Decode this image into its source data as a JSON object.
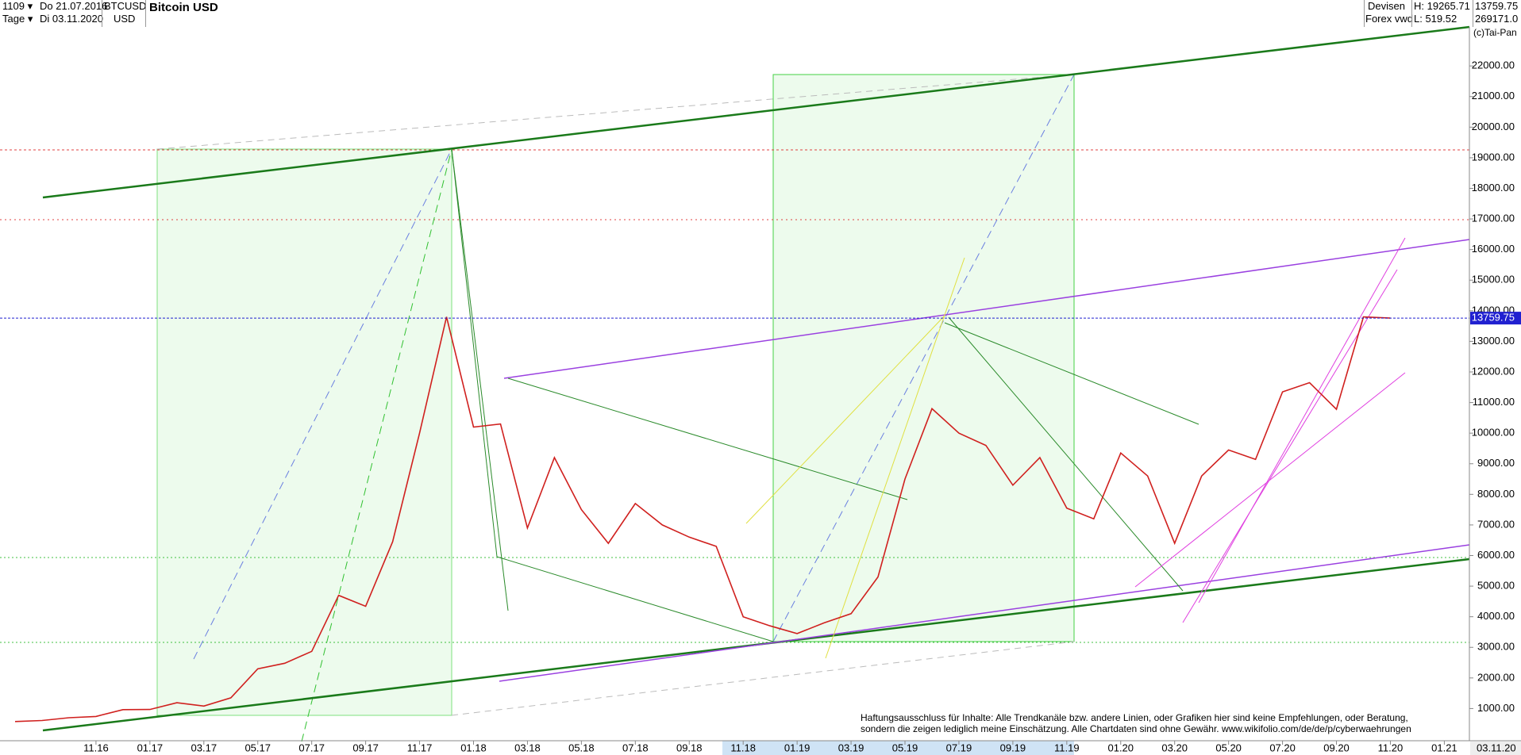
{
  "header": {
    "period": "1109",
    "from": "Do 21.07.2016",
    "unit": "Tage",
    "to": "Di 03.11.2020",
    "symbol": "BTCUSD",
    "currency": "USD",
    "market": "Devisen",
    "source": "Forex vwd",
    "high": "H: 19265.71",
    "low": "L: 519.52",
    "volume": "269171.0",
    "copyright": "(c)Tai-Pan"
  },
  "chart_data": {
    "type": "line",
    "title": "Bitcoin USD",
    "categories": [
      null,
      null,
      null,
      "11.16",
      null,
      "01.17",
      null,
      "03.17",
      null,
      "05.17",
      null,
      "07.17",
      null,
      "09.17",
      null,
      "11.17",
      null,
      "01.18",
      null,
      "03.18",
      null,
      "05.18",
      null,
      "07.18",
      null,
      "09.18",
      null,
      "11.18",
      null,
      "01.19",
      null,
      "03.19",
      null,
      "05.19",
      null,
      "07.19",
      null,
      "09.19",
      null,
      "11.19",
      null,
      "01.20",
      null,
      "03.20",
      null,
      "05.20",
      null,
      "07.20",
      null,
      "09.20",
      null,
      "11.20",
      null,
      "01.21"
    ],
    "series": [
      {
        "name": "BTCUSD",
        "color": "#d0201e",
        "values": [
          575,
          609,
          700,
          740,
          963,
          970,
          1190,
          1080,
          1350,
          2300,
          2480,
          2870,
          4700,
          4340,
          6450,
          10000,
          13800,
          10200,
          10300,
          6900,
          9200,
          7500,
          6400,
          7700,
          7000,
          6600,
          6300,
          4000,
          3700,
          3450,
          3800,
          4100,
          5300,
          8500,
          10800,
          10000,
          9600,
          8300,
          9200,
          7550,
          7200,
          9350,
          8600,
          6400,
          8600,
          9450,
          9140,
          11350,
          11650,
          10780,
          13800,
          13759.75,
          null,
          null
        ]
      }
    ],
    "ylim": [
      0,
      24000
    ],
    "yticks": [
      {
        "value": 1000,
        "label": "1000.00"
      },
      {
        "value": 2000,
        "label": "2000.00"
      },
      {
        "value": 3000,
        "label": "3000.00"
      },
      {
        "value": 4000,
        "label": "4000.00"
      },
      {
        "value": 5000,
        "label": "5000.00"
      },
      {
        "value": 6000,
        "label": "6000.00"
      },
      {
        "value": 7000,
        "label": "7000.00"
      },
      {
        "value": 8000,
        "label": "8000.00"
      },
      {
        "value": 9000,
        "label": "9000.00"
      },
      {
        "value": 10000,
        "label": "10000.00"
      },
      {
        "value": 11000,
        "label": "11000.00"
      },
      {
        "value": 12000,
        "label": "12000.00"
      },
      {
        "value": 13000,
        "label": "13000.00"
      },
      {
        "value": 14000,
        "label": "14000.00"
      },
      {
        "value": 15000,
        "label": "15000.00"
      },
      {
        "value": 16000,
        "label": "16000.00"
      },
      {
        "value": 17000,
        "label": "17000.00"
      },
      {
        "value": 18000,
        "label": "18000.00"
      },
      {
        "value": 19000,
        "label": "19000.00"
      },
      {
        "value": 20000,
        "label": "20000.00"
      },
      {
        "value": 21000,
        "label": "21000.00"
      },
      {
        "value": 22000,
        "label": "22000.00"
      }
    ],
    "current_price": {
      "value": 13759.75,
      "label": "13759.75"
    },
    "last_date": "03.11.20",
    "annotations": [
      "Haftungsausschluss für Inhalte: Alle Trendkanäle bzw. andere Linien, oder Grafiken hier sind keine Empfehlungen, oder Beratung,",
      "sondern die zeigen lediglich meine  Einschätzung. Alle Chartdaten sind ohne Gewähr.  www.wikifolio.com/de/de/p/cyberwaehrungen"
    ]
  }
}
